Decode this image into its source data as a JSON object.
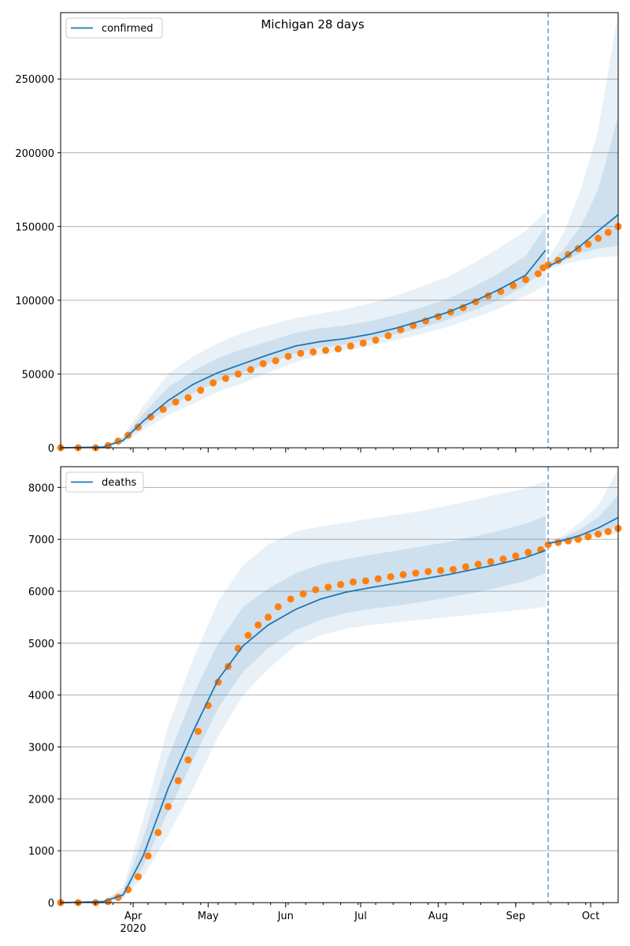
{
  "figure": {
    "suptitle": "Michigan 28 days"
  },
  "colors": {
    "model": "#1f77b4",
    "observed": "#ff7f0e",
    "band": "#1f77b4",
    "grid": "#b0b0b0"
  },
  "x_axis": {
    "year_label": "2020",
    "month_ticks": [
      {
        "label": "Apr",
        "date": "2020-04-01"
      },
      {
        "label": "May",
        "date": "2020-05-01"
      },
      {
        "label": "Jun",
        "date": "2020-06-01"
      },
      {
        "label": "Jul",
        "date": "2020-07-01"
      },
      {
        "label": "Aug",
        "date": "2020-08-01"
      },
      {
        "label": "Sep",
        "date": "2020-09-01"
      },
      {
        "label": "Oct",
        "date": "2020-10-01"
      }
    ],
    "xlim": [
      "2020-03-03",
      "2020-10-12"
    ],
    "forecast_start": "2020-09-14"
  },
  "chart_data": [
    {
      "type": "line",
      "legend": "confirmed",
      "legend_position": "top-left",
      "grid": "horizontal",
      "ylim": [
        0,
        295000
      ],
      "yticks": [
        0,
        50000,
        100000,
        150000,
        200000,
        250000
      ],
      "model_line": {
        "x": [
          "2020-03-03",
          "2020-03-20",
          "2020-03-28",
          "2020-04-05",
          "2020-04-15",
          "2020-04-25",
          "2020-05-05",
          "2020-05-15",
          "2020-05-25",
          "2020-06-05",
          "2020-06-15",
          "2020-06-25",
          "2020-07-05",
          "2020-07-15",
          "2020-07-25",
          "2020-08-05",
          "2020-08-15",
          "2020-08-25",
          "2020-09-05",
          "2020-09-13"
        ],
        "y": [
          0,
          500,
          5000,
          18000,
          32000,
          43000,
          51000,
          57000,
          63000,
          69000,
          72000,
          74000,
          77000,
          81000,
          86000,
          92000,
          99000,
          107000,
          117000,
          134000
        ]
      },
      "model_band_95": {
        "x": [
          "2020-03-03",
          "2020-03-20",
          "2020-03-28",
          "2020-04-05",
          "2020-04-15",
          "2020-04-25",
          "2020-05-05",
          "2020-05-15",
          "2020-05-25",
          "2020-06-05",
          "2020-06-15",
          "2020-06-25",
          "2020-07-05",
          "2020-07-15",
          "2020-07-25",
          "2020-08-05",
          "2020-08-15",
          "2020-08-25",
          "2020-09-05",
          "2020-09-13"
        ],
        "lower": [
          0,
          300,
          3000,
          12000,
          22000,
          30000,
          38000,
          44000,
          51000,
          58000,
          63000,
          66000,
          69000,
          73000,
          77000,
          82000,
          88000,
          94000,
          103000,
          110000
        ],
        "upper": [
          0,
          900,
          8000,
          28000,
          50000,
          62000,
          71000,
          78000,
          83000,
          88000,
          91000,
          94000,
          98000,
          103000,
          109000,
          116000,
          125000,
          135000,
          147000,
          160000
        ]
      },
      "model_band_68": {
        "lower": [
          0,
          400,
          4000,
          15000,
          27000,
          37000,
          45000,
          51000,
          57000,
          64000,
          68000,
          70000,
          73000,
          77000,
          81000,
          87000,
          93000,
          100000,
          110000,
          122000
        ],
        "upper": [
          0,
          700,
          6500,
          23000,
          41000,
          52000,
          61000,
          67000,
          72000,
          78000,
          81000,
          83000,
          86000,
          90000,
          95000,
          101000,
          109000,
          118000,
          130000,
          150000
        ]
      },
      "forecast_line": {
        "x": [
          "2020-09-14",
          "2020-09-20",
          "2020-09-27",
          "2020-10-04",
          "2020-10-12"
        ],
        "y": [
          123000,
          128000,
          137000,
          147000,
          158000
        ]
      },
      "forecast_band_95": {
        "lower": [
          121000,
          124000,
          127000,
          129000,
          130000
        ],
        "upper": [
          128000,
          145000,
          175000,
          215000,
          295000
        ]
      },
      "forecast_band_68": {
        "lower": [
          122000,
          126000,
          132000,
          135000,
          137000
        ],
        "upper": [
          125000,
          134000,
          150000,
          175000,
          225000
        ]
      },
      "observed": {
        "x": [
          "2020-03-03",
          "2020-03-10",
          "2020-03-17",
          "2020-03-22",
          "2020-03-26",
          "2020-03-30",
          "2020-04-03",
          "2020-04-08",
          "2020-04-13",
          "2020-04-18",
          "2020-04-23",
          "2020-04-28",
          "2020-05-03",
          "2020-05-08",
          "2020-05-13",
          "2020-05-18",
          "2020-05-23",
          "2020-05-28",
          "2020-06-02",
          "2020-06-07",
          "2020-06-12",
          "2020-06-17",
          "2020-06-22",
          "2020-06-27",
          "2020-07-02",
          "2020-07-07",
          "2020-07-12",
          "2020-07-17",
          "2020-07-22",
          "2020-07-27",
          "2020-08-01",
          "2020-08-06",
          "2020-08-11",
          "2020-08-16",
          "2020-08-21",
          "2020-08-26",
          "2020-08-31",
          "2020-09-05",
          "2020-09-10",
          "2020-09-12",
          "2020-09-14",
          "2020-09-18",
          "2020-09-22",
          "2020-09-26",
          "2020-09-30",
          "2020-10-04",
          "2020-10-08",
          "2020-10-12"
        ],
        "y": [
          0,
          0,
          0,
          1500,
          4500,
          8500,
          14000,
          21000,
          26000,
          31000,
          34000,
          39000,
          44000,
          47000,
          50000,
          53000,
          57000,
          59000,
          62000,
          64000,
          65000,
          66000,
          67000,
          69000,
          71000,
          73000,
          76000,
          80000,
          83000,
          86000,
          89000,
          92000,
          95000,
          99000,
          103000,
          106000,
          110000,
          114000,
          118000,
          122000,
          124000,
          127000,
          131000,
          135000,
          138000,
          142000,
          146000,
          150000
        ]
      }
    },
    {
      "type": "line",
      "legend": "deaths",
      "legend_position": "top-left",
      "grid": "horizontal",
      "ylim": [
        0,
        8400
      ],
      "yticks": [
        0,
        1000,
        2000,
        3000,
        4000,
        5000,
        6000,
        7000,
        8000
      ],
      "model_line": {
        "x": [
          "2020-03-03",
          "2020-03-20",
          "2020-03-28",
          "2020-04-05",
          "2020-04-15",
          "2020-04-25",
          "2020-05-05",
          "2020-05-15",
          "2020-05-25",
          "2020-06-05",
          "2020-06-15",
          "2020-06-25",
          "2020-07-05",
          "2020-07-15",
          "2020-07-25",
          "2020-08-05",
          "2020-08-15",
          "2020-08-25",
          "2020-09-05",
          "2020-09-13"
        ],
        "y": [
          0,
          20,
          150,
          900,
          2200,
          3300,
          4300,
          4950,
          5350,
          5650,
          5850,
          5980,
          6070,
          6150,
          6230,
          6320,
          6420,
          6520,
          6650,
          6790
        ]
      },
      "model_band_95": {
        "x": [
          "2020-03-03",
          "2020-03-20",
          "2020-03-28",
          "2020-04-05",
          "2020-04-15",
          "2020-04-25",
          "2020-05-05",
          "2020-05-15",
          "2020-05-25",
          "2020-06-05",
          "2020-06-15",
          "2020-06-25",
          "2020-07-05",
          "2020-07-15",
          "2020-07-25",
          "2020-08-05",
          "2020-08-15",
          "2020-08-25",
          "2020-09-05",
          "2020-09-13"
        ],
        "lower": [
          0,
          10,
          80,
          500,
          1300,
          2200,
          3200,
          4000,
          4500,
          4950,
          5150,
          5280,
          5350,
          5400,
          5450,
          5500,
          5550,
          5600,
          5650,
          5700
        ],
        "upper": [
          0,
          40,
          300,
          1600,
          3400,
          4700,
          5800,
          6500,
          6900,
          7150,
          7250,
          7320,
          7400,
          7470,
          7550,
          7650,
          7760,
          7870,
          7980,
          8120
        ]
      },
      "model_band_68": {
        "lower": [
          0,
          15,
          110,
          700,
          1750,
          2750,
          3750,
          4450,
          4900,
          5250,
          5450,
          5580,
          5660,
          5720,
          5790,
          5880,
          5970,
          6070,
          6200,
          6350
        ],
        "upper": [
          0,
          30,
          220,
          1250,
          2800,
          4000,
          5000,
          5700,
          6050,
          6350,
          6520,
          6620,
          6700,
          6780,
          6860,
          6950,
          7050,
          7160,
          7300,
          7450
        ]
      },
      "forecast_line": {
        "x": [
          "2020-09-14",
          "2020-09-20",
          "2020-09-27",
          "2020-10-04",
          "2020-10-12"
        ],
        "y": [
          6920,
          6980,
          7080,
          7220,
          7420
        ]
      },
      "forecast_band_95": {
        "lower": [
          6900,
          6940,
          6990,
          7050,
          7120
        ],
        "upper": [
          6960,
          7080,
          7330,
          7650,
          8350
        ]
      },
      "forecast_band_68": {
        "lower": [
          6910,
          6955,
          7020,
          7110,
          7240
        ],
        "upper": [
          6940,
          7030,
          7200,
          7420,
          7850
        ]
      },
      "observed": {
        "x": [
          "2020-03-03",
          "2020-03-10",
          "2020-03-17",
          "2020-03-22",
          "2020-03-26",
          "2020-03-30",
          "2020-04-03",
          "2020-04-07",
          "2020-04-11",
          "2020-04-15",
          "2020-04-19",
          "2020-04-23",
          "2020-04-27",
          "2020-05-01",
          "2020-05-05",
          "2020-05-09",
          "2020-05-13",
          "2020-05-17",
          "2020-05-21",
          "2020-05-25",
          "2020-05-29",
          "2020-06-03",
          "2020-06-08",
          "2020-06-13",
          "2020-06-18",
          "2020-06-23",
          "2020-06-28",
          "2020-07-03",
          "2020-07-08",
          "2020-07-13",
          "2020-07-18",
          "2020-07-23",
          "2020-07-28",
          "2020-08-02",
          "2020-08-07",
          "2020-08-12",
          "2020-08-17",
          "2020-08-22",
          "2020-08-27",
          "2020-09-01",
          "2020-09-06",
          "2020-09-11",
          "2020-09-14",
          "2020-09-18",
          "2020-09-22",
          "2020-09-26",
          "2020-09-30",
          "2020-10-04",
          "2020-10-08",
          "2020-10-12"
        ],
        "y": [
          0,
          0,
          0,
          20,
          100,
          250,
          500,
          900,
          1350,
          1850,
          2350,
          2750,
          3300,
          3800,
          4250,
          4550,
          4900,
          5150,
          5350,
          5500,
          5700,
          5850,
          5950,
          6030,
          6080,
          6130,
          6180,
          6200,
          6240,
          6280,
          6320,
          6350,
          6380,
          6400,
          6420,
          6470,
          6520,
          6570,
          6620,
          6680,
          6750,
          6800,
          6900,
          6940,
          6970,
          7000,
          7050,
          7100,
          7150,
          7210
        ]
      }
    }
  ]
}
